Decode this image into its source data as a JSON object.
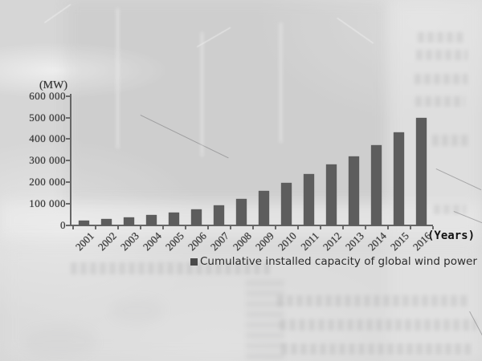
{
  "chart_data": {
    "type": "bar",
    "title": "",
    "y_axis_unit_label": "(MW)",
    "x_axis_unit_label": "(Years)",
    "categories": [
      "2001",
      "2002",
      "2003",
      "2004",
      "2005",
      "2006",
      "2007",
      "2008",
      "2009",
      "2010",
      "2011",
      "2012",
      "2013",
      "2014",
      "2015",
      "2016"
    ],
    "values": [
      24000,
      31000,
      39000,
      48000,
      59000,
      74000,
      94000,
      121000,
      159000,
      198000,
      238000,
      283000,
      319000,
      370000,
      433000,
      497000
    ],
    "series": [
      {
        "name": "Cumulative installed capacity of global wind power",
        "values": [
          24000,
          31000,
          39000,
          48000,
          59000,
          74000,
          94000,
          121000,
          159000,
          198000,
          238000,
          283000,
          319000,
          370000,
          433000,
          497000
        ]
      }
    ],
    "ylim": [
      0,
      600000
    ],
    "y_ticks": [
      0,
      100000,
      200000,
      300000,
      400000,
      500000,
      600000
    ],
    "y_tick_labels": [
      "0",
      "100 000",
      "200 000",
      "300 000",
      "400 000",
      "500 000",
      "600 000"
    ],
    "grid": false,
    "legend": {
      "marker": "square",
      "label": "Cumulative installed capacity of global wind power",
      "position": "bottom"
    },
    "bar_color": "#5d5d5d"
  },
  "colors": {
    "paper": "#d7d7d7",
    "bar": "#5d5d5d",
    "axis": "#6a6a6a",
    "scan_ink": "#3a3a3a",
    "overlay_ink": "#111111"
  }
}
